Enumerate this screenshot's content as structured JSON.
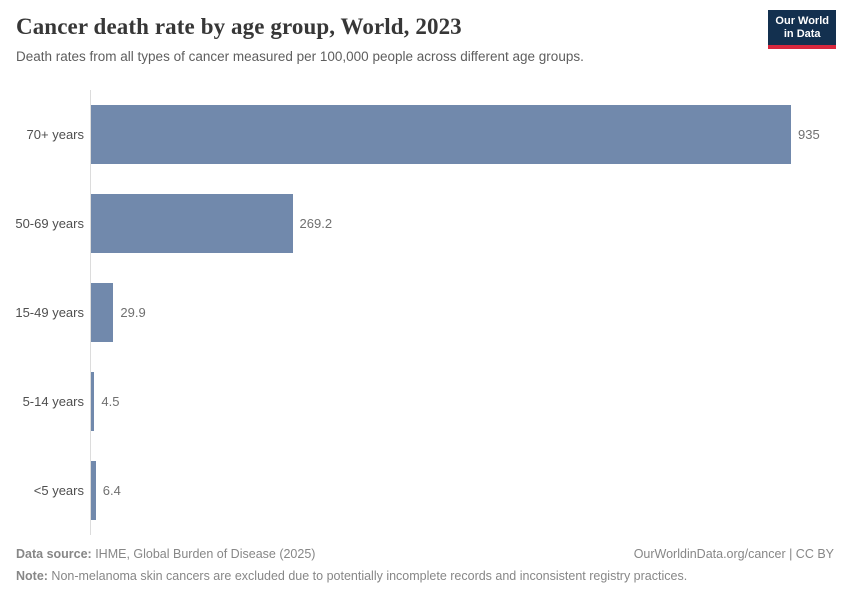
{
  "header": {
    "title": "Cancer death rate by age group, World, 2023",
    "subtitle": "Death rates from all types of cancer measured per 100,000 people across different age groups.",
    "logo_line1": "Our World",
    "logo_line2": "in Data"
  },
  "chart_data": {
    "type": "bar",
    "orientation": "horizontal",
    "title": "Cancer death rate by age group, World, 2023",
    "subtitle": "Death rates from all types of cancer measured per 100,000 people across different age groups.",
    "categories": [
      "70+ years",
      "50-69 years",
      "15-49 years",
      "5-14 years",
      "<5 years"
    ],
    "values": [
      935,
      269.2,
      29.9,
      4.5,
      6.4
    ],
    "value_labels": [
      "935",
      "269.2",
      "29.9",
      "4.5",
      "6.4"
    ],
    "xlabel": "",
    "ylabel": "",
    "xlim": [
      0,
      935
    ],
    "grid": false,
    "legend": false,
    "bar_color": "#7189ac",
    "axis_line_color": "#dcdcdc"
  },
  "footer": {
    "datasource_label": "Data source:",
    "datasource_value": " IHME, Global Burden of Disease (2025)",
    "rights": "OurWorldinData.org/cancer | CC BY",
    "note_label": "Note:",
    "note_value": " Non-melanoma skin cancers are excluded due to potentially incomplete records and inconsistent registry practices."
  },
  "colors": {
    "bar": "#7189ac",
    "logo_background": "#13304f",
    "logo_accent": "#d8273d",
    "axis_line": "#dcdcdc"
  }
}
